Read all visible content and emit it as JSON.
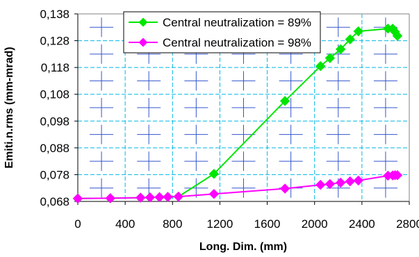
{
  "chart_data": {
    "type": "line",
    "xlabel": "Long. Dim. (mm)",
    "ylabel": "Emiti.n.rms (mm-mrad)",
    "xlim": [
      0,
      2800
    ],
    "ylim": [
      0.068,
      0.138
    ],
    "x_ticks": [
      "0",
      "400",
      "800",
      "1200",
      "1600",
      "2000",
      "2400",
      "2800"
    ],
    "y_ticks": [
      "0,068",
      "0,078",
      "0,088",
      "0,098",
      "0,108",
      "0,118",
      "0,128",
      "0,138"
    ],
    "x_tick_values": [
      0,
      400,
      800,
      1200,
      1600,
      2000,
      2400,
      2800
    ],
    "y_tick_values": [
      0.068,
      0.078,
      0.088,
      0.098,
      0.108,
      0.118,
      0.128,
      0.138
    ],
    "grid": true,
    "legend_position": "top",
    "series": [
      {
        "name": "Central neutralization = 89%",
        "color": "#00e600",
        "marker": "diamond",
        "x": [
          0,
          275,
          530,
          610,
          690,
          760,
          850,
          1150,
          1750,
          2050,
          2130,
          2220,
          2300,
          2370,
          2620,
          2660,
          2680,
          2700
        ],
        "y": [
          0.0691,
          0.0692,
          0.0694,
          0.0695,
          0.0696,
          0.0697,
          0.0698,
          0.0783,
          0.1055,
          0.1185,
          0.1215,
          0.1248,
          0.1285,
          0.1315,
          0.1325,
          0.1325,
          0.1313,
          0.1298
        ]
      },
      {
        "name": "Central neutralization = 98%",
        "color": "#ff00ff",
        "marker": "diamond",
        "x": [
          0,
          275,
          530,
          610,
          690,
          760,
          850,
          1150,
          1750,
          2050,
          2130,
          2220,
          2300,
          2370,
          2620,
          2660,
          2680,
          2700
        ],
        "y": [
          0.0691,
          0.0692,
          0.0694,
          0.0695,
          0.0696,
          0.0697,
          0.0698,
          0.0708,
          0.0728,
          0.0742,
          0.0745,
          0.075,
          0.0755,
          0.0758,
          0.0776,
          0.0777,
          0.0778,
          0.0778
        ]
      }
    ]
  }
}
